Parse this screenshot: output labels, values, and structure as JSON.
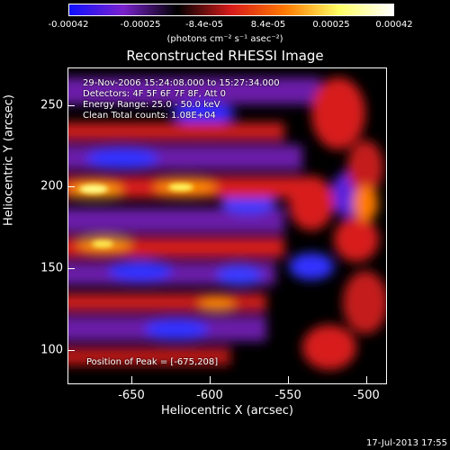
{
  "colorbar": {
    "tick_labels": [
      "-0.00042",
      "-0.00025",
      "-8.4e-05",
      "8.4e-05",
      "0.00025",
      "0.00042"
    ],
    "unit_label": "(photons cm⁻² s⁻¹ asec⁻²)",
    "colors": [
      "#1010ff",
      "#7a22cc",
      "#000000",
      "#d81b1b",
      "#ff7a00",
      "#ffff66",
      "#ffffff"
    ]
  },
  "title": "Reconstructed RHESSI Image",
  "annotations": {
    "time": "29-Nov-2006 15:24:08.000 to 15:27:34.000",
    "detectors": "Detectors: 4F 5F 6F 7F 8F, Att 0",
    "energy": "Energy Range: 25.0 - 50.0 keV",
    "clean": "Clean    Total counts: 1.08E+04",
    "peak": "Position of Peak = [-675,208]"
  },
  "axes": {
    "xlabel": "Heliocentric X (arcsec)",
    "ylabel": "Heliocentric Y (arcsec)",
    "x_ticks": [
      "-650",
      "-600",
      "-550",
      "-500"
    ],
    "y_ticks": [
      "250",
      "200",
      "150",
      "100"
    ]
  },
  "footer": "17-Jul-2013 17:55"
}
